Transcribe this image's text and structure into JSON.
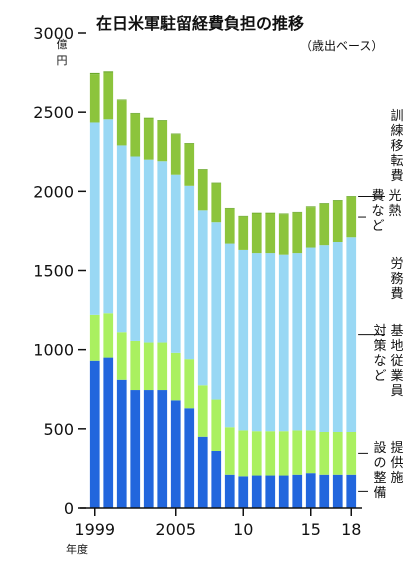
{
  "chart_data": {
    "type": "bar",
    "stacked": true,
    "title": "在日米軍駐留経費負担の推移",
    "subtitle": "（歳出ベース）",
    "ylabel": "億円",
    "xlabel": "年度",
    "ylim": [
      0,
      3000
    ],
    "yticks": [
      "3000",
      "2500",
      "2000",
      "1500",
      "1000",
      "500",
      "0"
    ],
    "x": [
      1999,
      2000,
      2001,
      2002,
      2003,
      2004,
      2005,
      2006,
      2007,
      2008,
      2009,
      2010,
      2011,
      2012,
      2013,
      2014,
      2015,
      2016,
      2017,
      2018
    ],
    "xticks": [
      "1999",
      "2005",
      "10",
      "15",
      "18"
    ],
    "series": [
      {
        "name": "提供施設の整備",
        "color": "#2266dd",
        "values": [
          930,
          950,
          810,
          745,
          745,
          745,
          680,
          630,
          450,
          360,
          210,
          200,
          205,
          205,
          205,
          210,
          220,
          210,
          210,
          210
        ]
      },
      {
        "name": "基地従業員対策など",
        "color": "#aaf060",
        "values": [
          290,
          280,
          300,
          310,
          300,
          300,
          300,
          310,
          325,
          325,
          300,
          290,
          280,
          280,
          280,
          280,
          270,
          270,
          270,
          270
        ]
      },
      {
        "name": "労務費",
        "color": "#99d8f4",
        "values": [
          1215,
          1225,
          1180,
          1165,
          1155,
          1145,
          1125,
          1095,
          1105,
          1120,
          1160,
          1140,
          1125,
          1125,
          1115,
          1120,
          1155,
          1180,
          1200,
          1230
        ]
      },
      {
        "name": "光熱費など",
        "color": "#8cc43c",
        "values": [
          305,
          295,
          285,
          270,
          260,
          255,
          255,
          265,
          255,
          245,
          220,
          210,
          250,
          250,
          255,
          255,
          255,
          260,
          260,
          255
        ]
      },
      {
        "name": "訓練移転費",
        "color": "#6aa82a",
        "values": [
          8,
          8,
          5,
          5,
          5,
          5,
          5,
          5,
          5,
          5,
          5,
          5,
          5,
          5,
          5,
          5,
          5,
          5,
          5,
          5
        ]
      }
    ],
    "annotations": [
      {
        "text": "訓練移転費",
        "series": "訓練移転費"
      },
      {
        "text": "光熱費など",
        "series": "光熱費など"
      },
      {
        "text": "労務費",
        "series": "労務費"
      },
      {
        "text": "基地従業員対策など",
        "series": "基地従業員対策など"
      },
      {
        "text": "提供施設の整備",
        "series": "提供施設の整備"
      }
    ]
  }
}
